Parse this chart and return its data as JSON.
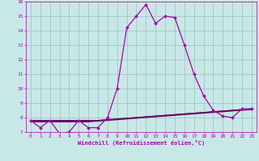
{
  "xlabel": "Windchill (Refroidissement éolien,°C)",
  "xlim": [
    -0.5,
    23.5
  ],
  "ylim": [
    7,
    16
  ],
  "yticks": [
    7,
    8,
    9,
    10,
    11,
    12,
    13,
    14,
    15,
    16
  ],
  "xticks": [
    0,
    1,
    2,
    3,
    4,
    5,
    6,
    7,
    8,
    9,
    10,
    11,
    12,
    13,
    14,
    15,
    16,
    17,
    18,
    19,
    20,
    21,
    22,
    23
  ],
  "bg_color": "#c8e8e8",
  "grid_color": "#a0c8c0",
  "line_color": "#aa00aa",
  "line_color2": "#660066",
  "line1_x": [
    0,
    1,
    2,
    3,
    4,
    5,
    6,
    7,
    8,
    9,
    10,
    11,
    12,
    13,
    14,
    15,
    16,
    17,
    18,
    19,
    20,
    21,
    22,
    23
  ],
  "line1_y": [
    7.8,
    7.3,
    7.8,
    6.9,
    7.0,
    7.8,
    7.3,
    7.3,
    8.0,
    10.0,
    14.2,
    15.0,
    15.8,
    14.5,
    15.0,
    14.9,
    13.0,
    11.0,
    9.5,
    8.5,
    8.1,
    8.0,
    8.6,
    8.6
  ],
  "line2_x": [
    0,
    1,
    2,
    3,
    4,
    5,
    6,
    7,
    8,
    9,
    10,
    11,
    12,
    13,
    14,
    15,
    16,
    17,
    18,
    19,
    20,
    21,
    22,
    23
  ],
  "line2_y": [
    7.8,
    7.8,
    7.8,
    7.8,
    7.8,
    7.8,
    7.8,
    7.8,
    7.85,
    7.9,
    7.95,
    8.0,
    8.05,
    8.1,
    8.15,
    8.2,
    8.25,
    8.3,
    8.35,
    8.4,
    8.45,
    8.5,
    8.55,
    8.6
  ],
  "line3_x": [
    0,
    1,
    2,
    3,
    4,
    5,
    6,
    7,
    8,
    9,
    10,
    11,
    12,
    13,
    14,
    15,
    16,
    17,
    18,
    19,
    20,
    21,
    22,
    23
  ],
  "line3_y": [
    7.75,
    7.75,
    7.75,
    7.75,
    7.75,
    7.75,
    7.75,
    7.8,
    7.85,
    7.9,
    7.95,
    8.0,
    8.05,
    8.1,
    8.15,
    8.2,
    8.25,
    8.3,
    8.35,
    8.4,
    8.45,
    8.5,
    8.55,
    8.6
  ],
  "line4_x": [
    0,
    1,
    2,
    3,
    4,
    5,
    6,
    7,
    8,
    9,
    10,
    11,
    12,
    13,
    14,
    15,
    16,
    17,
    18,
    19,
    20,
    21,
    22,
    23
  ],
  "line4_y": [
    7.7,
    7.7,
    7.7,
    7.7,
    7.7,
    7.7,
    7.7,
    7.75,
    7.8,
    7.85,
    7.9,
    7.95,
    8.0,
    8.05,
    8.1,
    8.15,
    8.2,
    8.25,
    8.3,
    8.35,
    8.4,
    8.45,
    8.5,
    8.55
  ]
}
